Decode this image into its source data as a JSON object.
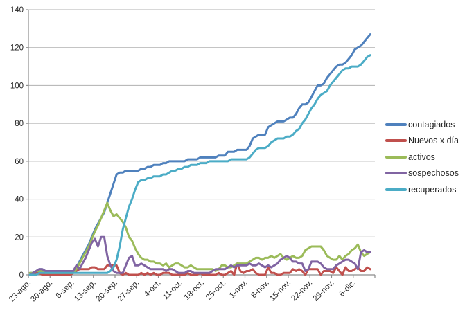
{
  "colors": {
    "background": "#FFFFFF",
    "grid": "#B0B0B0",
    "axis": "#8C8C8C",
    "tick_text": "#262626"
  },
  "chart_data": {
    "type": "line",
    "title": "",
    "xlabel": "",
    "ylabel": "",
    "ylim": [
      0,
      140
    ],
    "y_ticks": [
      0,
      20,
      40,
      60,
      80,
      100,
      120,
      140
    ],
    "grid": "horizontal",
    "legend_position": "right",
    "n_points": 111,
    "x_start_date": "23-ago.",
    "x_tick_labels": [
      "23-ago.",
      "30-ago.",
      "6-sep.",
      "13-sep.",
      "20-sep.",
      "27-sep.",
      "4-oct.",
      "11-oct.",
      "18-oct.",
      "25-oct.",
      "1-nov.",
      "8-nov.",
      "15-nov.",
      "22-nov.",
      "29-nov.",
      "6-dic."
    ],
    "x_tick_day_indices": [
      0,
      7,
      14,
      21,
      28,
      35,
      42,
      49,
      56,
      63,
      70,
      77,
      84,
      91,
      98,
      105
    ],
    "series": [
      {
        "name": "contagiados",
        "color": "#4F81BD",
        "values": [
          1,
          1,
          2,
          3,
          3,
          2,
          2,
          2,
          2,
          2,
          2,
          2,
          2,
          2,
          2,
          4,
          7,
          10,
          13,
          16,
          20,
          24,
          27,
          30,
          33,
          38,
          43,
          48,
          53,
          54,
          54,
          55,
          55,
          55,
          55,
          55,
          56,
          56,
          57,
          57,
          58,
          58,
          58,
          59,
          59,
          60,
          60,
          60,
          60,
          60,
          60,
          61,
          61,
          61,
          61,
          62,
          62,
          62,
          62,
          62,
          62,
          63,
          63,
          63,
          65,
          65,
          65,
          66,
          66,
          66,
          66,
          68,
          72,
          73,
          74,
          74,
          74,
          78,
          79,
          80,
          81,
          81,
          81,
          82,
          83,
          83,
          85,
          88,
          90,
          90,
          91,
          94,
          97,
          100,
          100,
          101,
          104,
          106,
          108,
          110,
          111,
          111,
          112,
          114,
          116,
          119,
          120,
          121,
          123,
          125,
          127
        ]
      },
      {
        "name": "Nuevos x día",
        "color": "#C0504D",
        "values": [
          1,
          0,
          1,
          1,
          0,
          0,
          0,
          0,
          0,
          0,
          0,
          0,
          0,
          0,
          1,
          2,
          3,
          3,
          3,
          3,
          4,
          4,
          3,
          3,
          3,
          5,
          5,
          5,
          5,
          1,
          0,
          1,
          0,
          0,
          0,
          0,
          1,
          0,
          1,
          0,
          1,
          0,
          0,
          1,
          1,
          1,
          0,
          0,
          0,
          0,
          0,
          1,
          0,
          0,
          0,
          1,
          0,
          0,
          0,
          0,
          0,
          1,
          0,
          0,
          1,
          2,
          0,
          6,
          2,
          1,
          2,
          2,
          3,
          1,
          0,
          0,
          0,
          4,
          1,
          1,
          0,
          0,
          1,
          1,
          1,
          3,
          2,
          3,
          2,
          0,
          3,
          3,
          3,
          3,
          0,
          2,
          2,
          2,
          1,
          4,
          2,
          0,
          4,
          2,
          2,
          3,
          4,
          2,
          2,
          4,
          3
        ]
      },
      {
        "name": "activos",
        "color": "#9BBB59",
        "values": [
          1,
          1,
          2,
          2,
          2,
          1,
          1,
          1,
          1,
          1,
          1,
          1,
          1,
          1,
          1,
          3,
          6,
          9,
          12,
          15,
          19,
          23,
          26,
          30,
          34,
          38,
          34,
          31,
          32,
          30,
          28,
          25,
          20,
          18,
          14,
          11,
          9,
          8,
          8,
          7,
          7,
          6,
          6,
          5,
          6,
          4,
          5,
          6,
          6,
          5,
          4,
          4,
          5,
          4,
          3,
          3,
          3,
          3,
          3,
          3,
          2,
          3,
          5,
          5,
          4,
          4,
          5,
          6,
          6,
          6,
          6,
          7,
          8,
          9,
          9,
          8,
          9,
          9,
          10,
          9,
          10,
          11,
          9,
          8,
          9,
          10,
          9,
          9,
          10,
          13,
          14,
          15,
          15,
          15,
          15,
          13,
          10,
          9,
          8,
          8,
          10,
          8,
          10,
          11,
          13,
          14,
          16,
          12,
          10,
          11,
          12
        ]
      },
      {
        "name": "sospechosos",
        "color": "#8064A2",
        "values": [
          0,
          1,
          2,
          3,
          3,
          2,
          2,
          2,
          2,
          2,
          2,
          2,
          2,
          2,
          2,
          5,
          3,
          6,
          9,
          13,
          17,
          19,
          15,
          20,
          20,
          10,
          5,
          2,
          1,
          1,
          1,
          5,
          9,
          10,
          5,
          5,
          6,
          5,
          4,
          3,
          3,
          3,
          3,
          3,
          2,
          3,
          3,
          2,
          1,
          1,
          1,
          2,
          2,
          1,
          1,
          1,
          1,
          1,
          1,
          2,
          3,
          3,
          3,
          3,
          4,
          5,
          4,
          5,
          5,
          5,
          5,
          6,
          5,
          5,
          6,
          5,
          4,
          5,
          4,
          5,
          6,
          8,
          9,
          10,
          9,
          7,
          7,
          6,
          6,
          2,
          3,
          7,
          7,
          7,
          6,
          4,
          3,
          3,
          3,
          5,
          6,
          7,
          8,
          8,
          7,
          6,
          3,
          12,
          13,
          12,
          12
        ]
      },
      {
        "name": "recuperados",
        "color": "#4BACC6",
        "values": [
          0,
          0,
          0,
          1,
          1,
          1,
          1,
          1,
          1,
          1,
          1,
          1,
          1,
          1,
          1,
          1,
          1,
          1,
          1,
          1,
          1,
          1,
          1,
          1,
          1,
          1,
          2,
          4,
          8,
          15,
          24,
          30,
          36,
          40,
          45,
          49,
          50,
          50,
          51,
          51,
          52,
          52,
          52,
          53,
          53,
          54,
          55,
          55,
          56,
          56,
          57,
          57,
          58,
          58,
          58,
          59,
          59,
          59,
          60,
          60,
          60,
          60,
          60,
          60,
          60,
          61,
          61,
          61,
          61,
          61,
          61,
          62,
          64,
          66,
          67,
          67,
          67,
          68,
          70,
          71,
          72,
          72,
          72,
          73,
          73,
          74,
          76,
          77,
          80,
          82,
          85,
          88,
          90,
          93,
          95,
          96,
          97,
          100,
          102,
          104,
          106,
          108,
          109,
          109,
          110,
          110,
          110,
          111,
          113,
          115,
          116
        ]
      }
    ]
  }
}
